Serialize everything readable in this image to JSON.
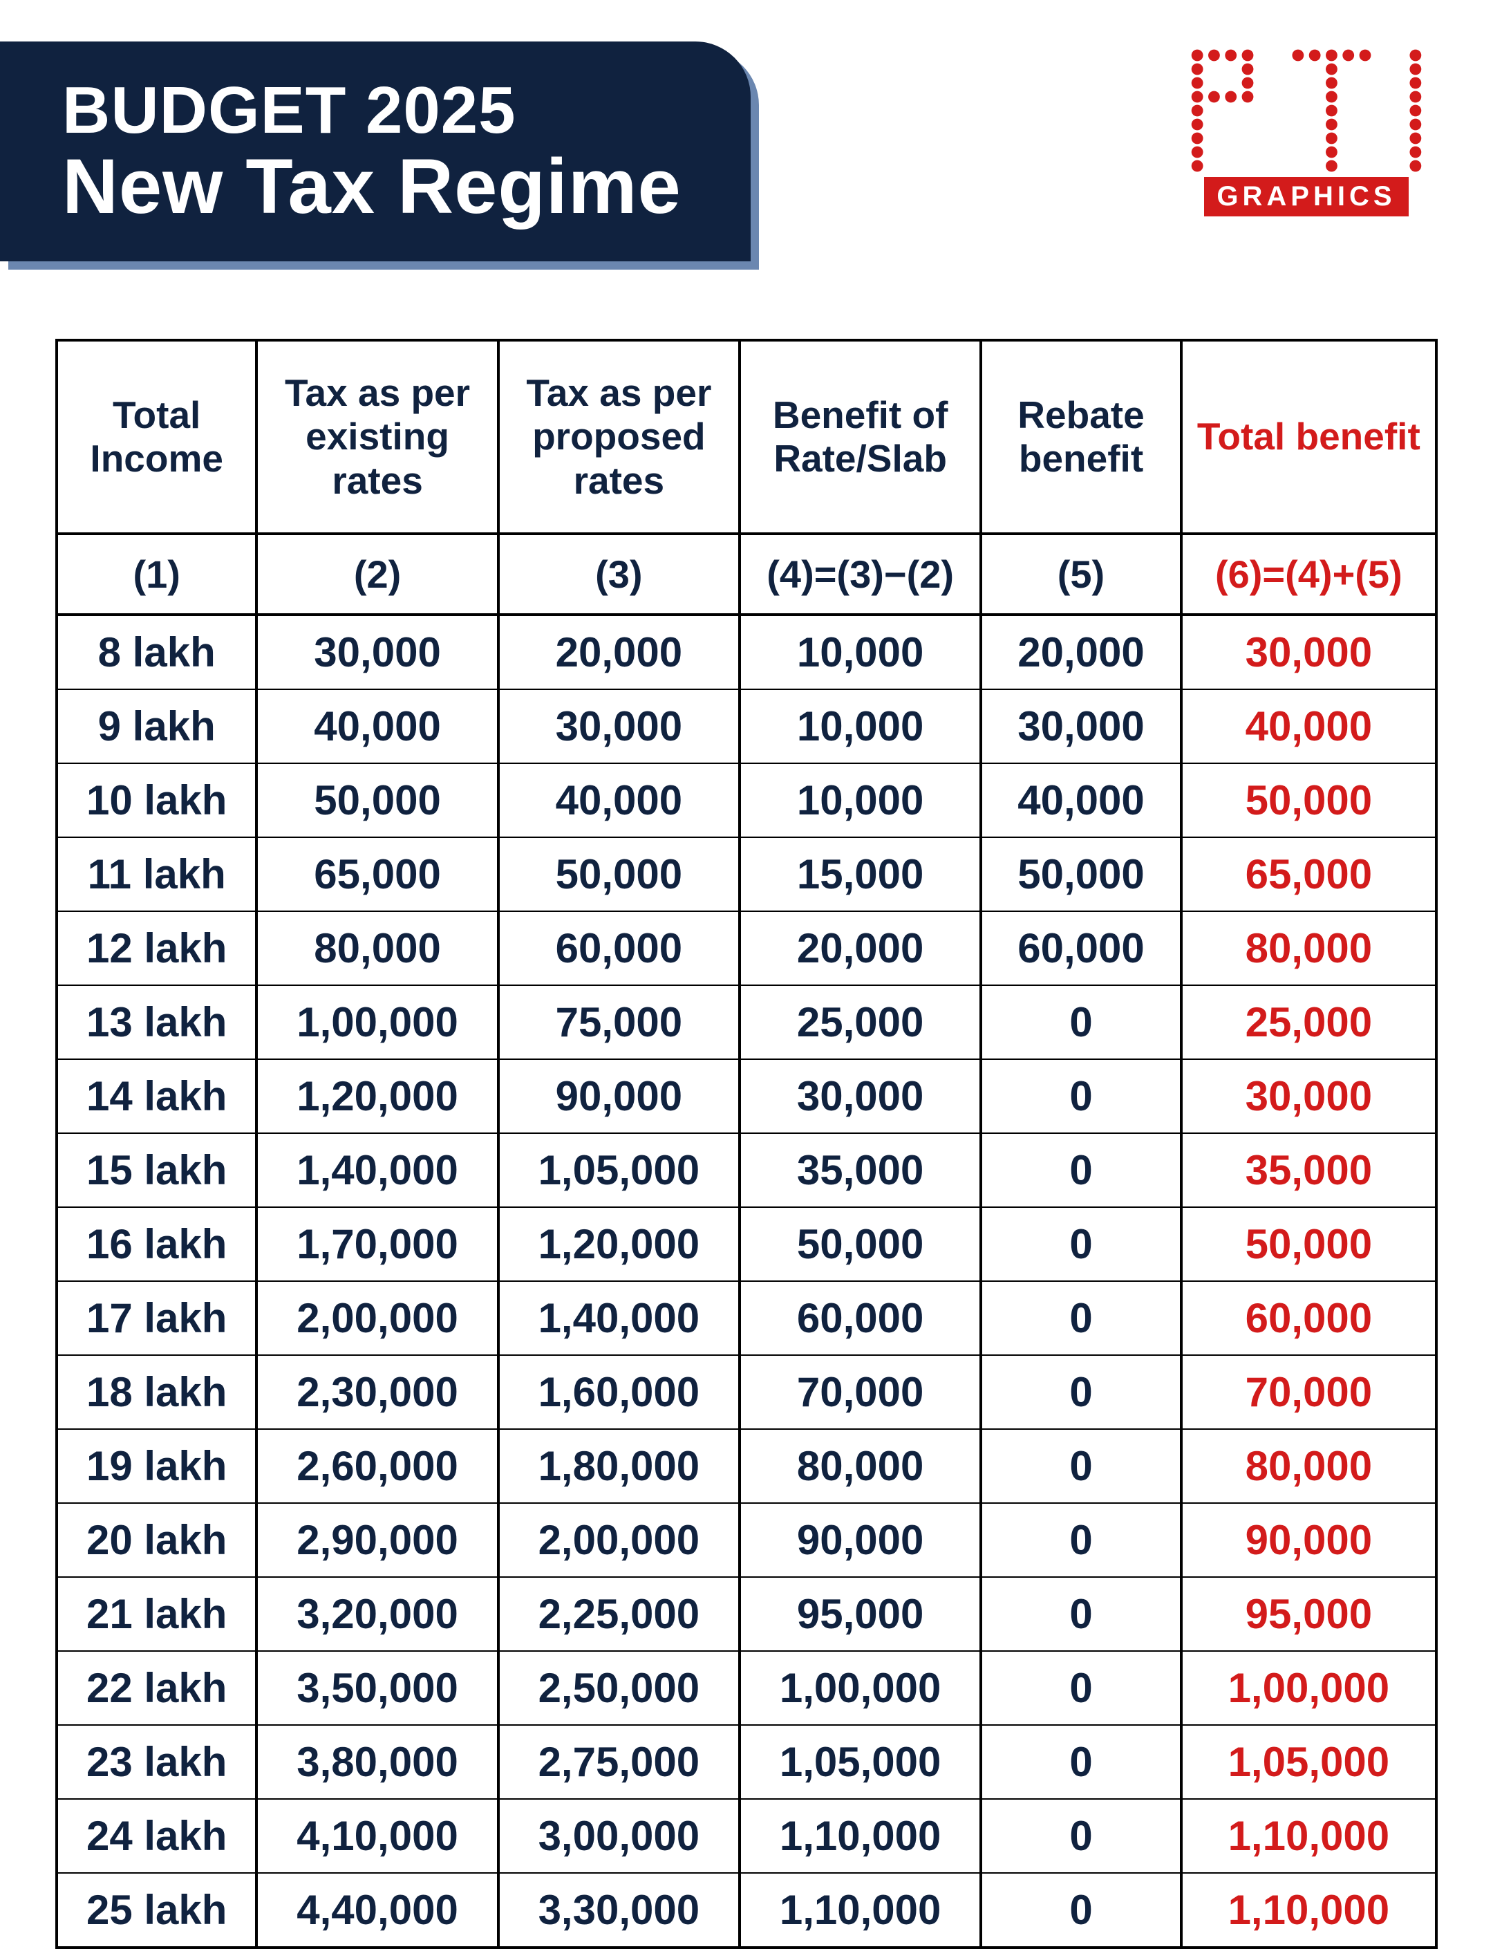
{
  "header": {
    "title_line1": "BUDGET 2025",
    "title_line2": "New Tax Regime",
    "banner_bg": "#10223f",
    "banner_shadow": "#6b87b0",
    "banner_text_color": "#ffffff"
  },
  "logo": {
    "label": "GRAPHICS",
    "dot_color": "#d31b1b",
    "label_bg": "#d31b1b",
    "label_text_color": "#ffffff"
  },
  "table": {
    "text_color": "#10223f",
    "accent_color": "#d31b1b",
    "border_color": "#000000",
    "background_color": "#ffffff",
    "header_fontsize": 55,
    "cell_fontsize": 60,
    "columns": [
      {
        "label": "Total Income",
        "formula": "(1)",
        "accent": false
      },
      {
        "label": "Tax as per existing rates",
        "formula": "(2)",
        "accent": false
      },
      {
        "label": "Tax as per proposed rates",
        "formula": "(3)",
        "accent": false
      },
      {
        "label": "Benefit of Rate/Slab",
        "formula": "(4)=(3)−(2)",
        "accent": false
      },
      {
        "label": "Rebate benefit",
        "formula": "(5)",
        "accent": false
      },
      {
        "label": "Total benefit",
        "formula": "(6)=(4)+(5)",
        "accent": true
      }
    ],
    "rows": [
      [
        "8 lakh",
        "30,000",
        "20,000",
        "10,000",
        "20,000",
        "30,000"
      ],
      [
        "9 lakh",
        "40,000",
        "30,000",
        "10,000",
        "30,000",
        "40,000"
      ],
      [
        "10 lakh",
        "50,000",
        "40,000",
        "10,000",
        "40,000",
        "50,000"
      ],
      [
        "11 lakh",
        "65,000",
        "50,000",
        "15,000",
        "50,000",
        "65,000"
      ],
      [
        "12 lakh",
        "80,000",
        "60,000",
        "20,000",
        "60,000",
        "80,000"
      ],
      [
        "13 lakh",
        "1,00,000",
        "75,000",
        "25,000",
        "0",
        "25,000"
      ],
      [
        "14 lakh",
        "1,20,000",
        "90,000",
        "30,000",
        "0",
        "30,000"
      ],
      [
        "15 lakh",
        "1,40,000",
        "1,05,000",
        "35,000",
        "0",
        "35,000"
      ],
      [
        "16 lakh",
        "1,70,000",
        "1,20,000",
        "50,000",
        "0",
        "50,000"
      ],
      [
        "17 lakh",
        "2,00,000",
        "1,40,000",
        "60,000",
        "0",
        "60,000"
      ],
      [
        "18 lakh",
        "2,30,000",
        "1,60,000",
        "70,000",
        "0",
        "70,000"
      ],
      [
        "19 lakh",
        "2,60,000",
        "1,80,000",
        "80,000",
        "0",
        "80,000"
      ],
      [
        "20 lakh",
        "2,90,000",
        "2,00,000",
        "90,000",
        "0",
        "90,000"
      ],
      [
        "21 lakh",
        "3,20,000",
        "2,25,000",
        "95,000",
        "0",
        "95,000"
      ],
      [
        "22 lakh",
        "3,50,000",
        "2,50,000",
        "1,00,000",
        "0",
        "1,00,000"
      ],
      [
        "23 lakh",
        "3,80,000",
        "2,75,000",
        "1,05,000",
        "0",
        "1,05,000"
      ],
      [
        "24 lakh",
        "4,10,000",
        "3,00,000",
        "1,10,000",
        "0",
        "1,10,000"
      ],
      [
        "25 lakh",
        "4,40,000",
        "3,30,000",
        "1,10,000",
        "0",
        "1,10,000"
      ]
    ]
  }
}
